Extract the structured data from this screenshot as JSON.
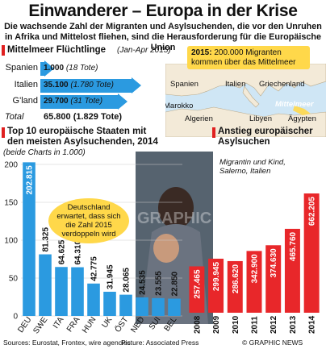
{
  "title": "Einwanderer – Europa in der Krise",
  "subtitle": "Die wachsende Zahl der Migranten und Asylsuchenden, die vor den Unruhen in Afrika und Mittelost fliehen, sind die Herausforderung für die Europäische Union",
  "refugees": {
    "title": "Mittelmeer Flüchtlinge",
    "period": "(Jan-Apr 2015)",
    "rows": [
      {
        "label": "Spanien",
        "value": "1.000",
        "dead": "(18 Tote)",
        "amount": 1000
      },
      {
        "label": "Italien",
        "value": "35.100",
        "dead": "(1.780 Tote)",
        "amount": 35100
      },
      {
        "label": "G'land",
        "value": "29.700",
        "dead": "(31 Tote)",
        "amount": 29700
      }
    ],
    "total_label": "Total",
    "total_value": "65.800 (1.829 Tote)"
  },
  "map": {
    "callout_year": "2015:",
    "callout_text": "200.000 Migranten kommen über das Mittelmeer",
    "labels": [
      "Spanien",
      "Italien",
      "Griechenland",
      "Marokko",
      "Mittelmeer",
      "Algerien",
      "Libyen",
      "Ägypten"
    ],
    "land_color": "#f3ead8",
    "sea_color": "#cfe6f5"
  },
  "top10": {
    "title": "Top 10 europäische Staaten mit den meisten Asylsuchenden, 2014",
    "note": "(beide Charts in 1.000)",
    "speech": "Deutschland erwartet, dass sich die Zahl 2015 verdoppeln wird"
  },
  "trend": {
    "title": "Anstieg europäischer Asylsuchen"
  },
  "photo": {
    "caption": "Migrantin und Kind, Salerno, Italien",
    "watermark": "GRAPHIC NEWS"
  },
  "footer": {
    "sources": "Sources: Eurostat, Frontex, wire agencies",
    "picture": "Picture: Associated Press",
    "brand": "© GRAPHIC NEWS"
  },
  "colors": {
    "accent_blue": "#2b9ae0",
    "accent_red": "#e8272a",
    "callout_yellow": "#ffd84a"
  },
  "chart_data": [
    {
      "type": "bar",
      "title": "Top 10 europäische Staaten mit den meisten Asylsuchenden, 2014",
      "categories": [
        "DEU",
        "SWE",
        "ITA",
        "FRA",
        "HUN",
        "UK",
        "ÖST",
        "NED",
        "SUI",
        "BEL"
      ],
      "values": [
        202.815,
        81.325,
        64.625,
        64.31,
        42.775,
        31.945,
        28.065,
        24.535,
        23.555,
        22.85
      ],
      "labels": [
        "202.815",
        "81.325",
        "64.625",
        "64.310",
        "42.775",
        "31.945",
        "28.065",
        "24.535",
        "23.555",
        "22.850"
      ],
      "ylim": [
        0,
        200
      ],
      "yticks": [
        0,
        50,
        100,
        150,
        200
      ],
      "grid": true
    },
    {
      "type": "bar",
      "title": "Anstieg europäischer Asylsuchen",
      "categories": [
        "2008",
        "2009",
        "2010",
        "2011",
        "2012",
        "2013",
        "2014"
      ],
      "values": [
        257.465,
        299.945,
        286.62,
        342.9,
        374.63,
        465.76,
        662.205
      ],
      "labels": [
        "257.465",
        "299.945",
        "286.620",
        "342.900",
        "374.630",
        "465.760",
        "662.205"
      ],
      "ylim": [
        0,
        662.205
      ]
    }
  ]
}
